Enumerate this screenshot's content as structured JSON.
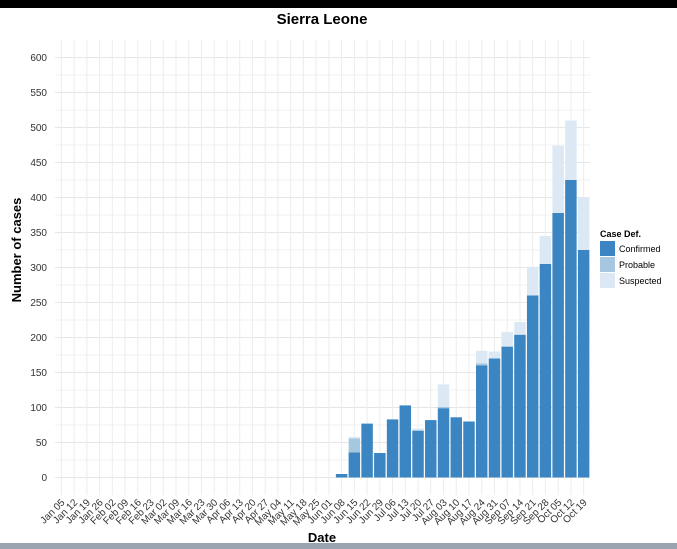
{
  "chart_data": {
    "type": "bar",
    "stacked": true,
    "title": "Sierra Leone",
    "xlabel": "Date",
    "ylabel": "Number of cases",
    "ylim": [
      -25,
      625
    ],
    "yticks": [
      0,
      50,
      100,
      150,
      200,
      250,
      300,
      350,
      400,
      450,
      500,
      550,
      600
    ],
    "grid": true,
    "legend": {
      "title": "Case Def.",
      "position": "right"
    },
    "categories": [
      "Jan 05",
      "Jan 12",
      "Jan 19",
      "Jan 26",
      "Feb 02",
      "Feb 09",
      "Feb 16",
      "Feb 23",
      "Mar 02",
      "Mar 09",
      "Mar 16",
      "Mar 23",
      "Mar 30",
      "Apr 06",
      "Apr 13",
      "Apr 20",
      "Apr 27",
      "May 04",
      "May 11",
      "May 18",
      "May 25",
      "Jun 01",
      "Jun 08",
      "Jun 15",
      "Jun 22",
      "Jun 29",
      "Jul 06",
      "Jul 13",
      "Jul 20",
      "Jul 27",
      "Aug 03",
      "Aug 10",
      "Aug 17",
      "Aug 24",
      "Aug 31",
      "Sep 07",
      "Sep 14",
      "Sep 21",
      "Sep 28",
      "Oct 05",
      "Oct 12",
      "Oct 19"
    ],
    "series": [
      {
        "name": "Confirmed",
        "color": "#3a85c2",
        "values": [
          0,
          0,
          0,
          0,
          0,
          0,
          0,
          0,
          0,
          0,
          0,
          0,
          0,
          0,
          0,
          0,
          0,
          0,
          0,
          0,
          0,
          0,
          5,
          36,
          77,
          35,
          83,
          103,
          67,
          82,
          99,
          86,
          80,
          160,
          170,
          187,
          204,
          260,
          305,
          378,
          425,
          325
        ]
      },
      {
        "name": "Probable",
        "color": "#a5c8e0",
        "values": [
          0,
          0,
          0,
          0,
          0,
          0,
          0,
          0,
          0,
          0,
          0,
          0,
          0,
          0,
          0,
          0,
          0,
          0,
          0,
          0,
          0,
          0,
          0,
          20,
          0,
          0,
          0,
          0,
          0,
          0,
          2,
          0,
          0,
          3,
          0,
          0,
          0,
          0,
          0,
          0,
          0,
          0
        ]
      },
      {
        "name": "Suspected",
        "color": "#dce9f4",
        "values": [
          0,
          0,
          0,
          0,
          0,
          0,
          0,
          0,
          0,
          0,
          0,
          0,
          0,
          0,
          0,
          0,
          0,
          0,
          0,
          0,
          0,
          0,
          0,
          2,
          0,
          0,
          0,
          0,
          3,
          0,
          32,
          0,
          0,
          18,
          10,
          21,
          18,
          41,
          40,
          96,
          85,
          75
        ]
      }
    ]
  }
}
